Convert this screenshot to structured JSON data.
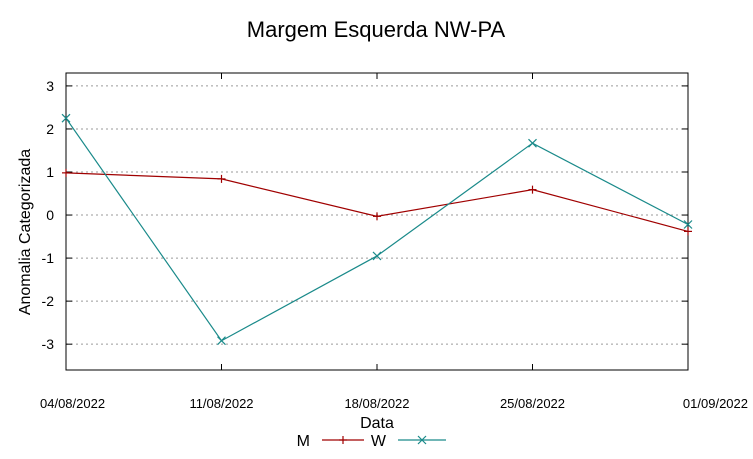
{
  "chart_data": {
    "type": "line",
    "title": "Margem Esquerda NW-PA",
    "xlabel": "Data",
    "ylabel": "Anomalia Categorizada",
    "categories": [
      "04/08/2022",
      "11/08/2022",
      "18/08/2022",
      "25/08/2022",
      "01/09/2022"
    ],
    "yticks": [
      3,
      2,
      1,
      0,
      -1,
      -2,
      -3
    ],
    "ylim": [
      -3.6,
      3.3
    ],
    "grid": true,
    "legend_position": "bottom",
    "series": [
      {
        "name": "M",
        "values": [
          0.98,
          0.84,
          -0.03,
          0.59,
          -0.38
        ],
        "color": "#a00000",
        "marker": "plus"
      },
      {
        "name": "W",
        "values": [
          2.25,
          -2.92,
          -0.95,
          1.67,
          -0.22
        ],
        "color": "#1a8a8a",
        "marker": "cross"
      }
    ]
  }
}
